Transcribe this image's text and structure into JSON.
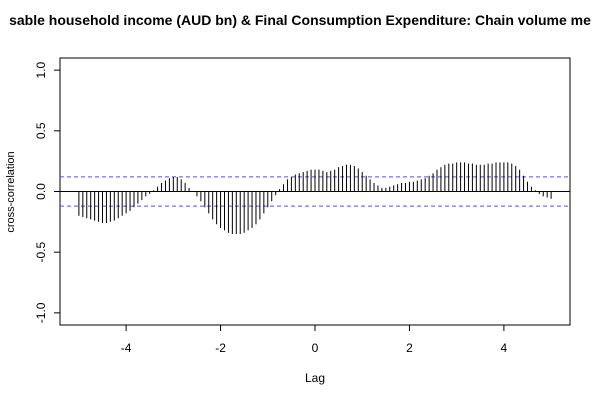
{
  "chart_data": {
    "type": "spike",
    "title": "sable household income (AUD bn) & Final Consumption Expenditure: Chain volume me",
    "xlabel": "Lag",
    "ylabel": "cross-correlation",
    "x": [
      -5,
      -4.9167,
      -4.8333,
      -4.75,
      -4.6667,
      -4.5833,
      -4.5,
      -4.4167,
      -4.3333,
      -4.25,
      -4.1667,
      -4.0833,
      -4,
      -3.9167,
      -3.8333,
      -3.75,
      -3.6667,
      -3.5833,
      -3.5,
      -3.4167,
      -3.3333,
      -3.25,
      -3.1667,
      -3.0833,
      -3,
      -2.9167,
      -2.8333,
      -2.75,
      -2.6667,
      -2.5833,
      -2.5,
      -2.4167,
      -2.3333,
      -2.25,
      -2.1667,
      -2.0833,
      -2,
      -1.9167,
      -1.8333,
      -1.75,
      -1.6667,
      -1.5833,
      -1.5,
      -1.4167,
      -1.3333,
      -1.25,
      -1.1667,
      -1.0833,
      -1,
      -0.9167,
      -0.8333,
      -0.75,
      -0.6667,
      -0.5833,
      -0.5,
      -0.4167,
      -0.3333,
      -0.25,
      -0.1667,
      -0.0833,
      0,
      0.0833,
      0.1667,
      0.25,
      0.3333,
      0.4167,
      0.5,
      0.5833,
      0.6667,
      0.75,
      0.8333,
      0.9167,
      1,
      1.0833,
      1.1667,
      1.25,
      1.3333,
      1.4167,
      1.5,
      1.5833,
      1.6667,
      1.75,
      1.8333,
      1.9167,
      2,
      2.0833,
      2.1667,
      2.25,
      2.3333,
      2.4167,
      2.5,
      2.5833,
      2.6667,
      2.75,
      2.8333,
      2.9167,
      3,
      3.0833,
      3.1667,
      3.25,
      3.3333,
      3.4167,
      3.5,
      3.5833,
      3.6667,
      3.75,
      3.8333,
      3.9167,
      4,
      4.0833,
      4.1667,
      4.25,
      4.3333,
      4.4167,
      4.5,
      4.5833,
      4.6667,
      4.75,
      4.8333,
      4.9167,
      5
    ],
    "values": [
      -0.2,
      -0.21,
      -0.22,
      -0.23,
      -0.24,
      -0.25,
      -0.26,
      -0.26,
      -0.25,
      -0.24,
      -0.22,
      -0.2,
      -0.18,
      -0.16,
      -0.13,
      -0.1,
      -0.07,
      -0.04,
      -0.02,
      0.01,
      0.04,
      0.07,
      0.09,
      0.11,
      0.12,
      0.12,
      0.1,
      0.07,
      0.03,
      0.0,
      -0.04,
      -0.08,
      -0.13,
      -0.18,
      -0.23,
      -0.27,
      -0.3,
      -0.32,
      -0.34,
      -0.35,
      -0.35,
      -0.35,
      -0.34,
      -0.32,
      -0.3,
      -0.27,
      -0.23,
      -0.18,
      -0.13,
      -0.08,
      -0.03,
      0.02,
      0.06,
      0.1,
      0.12,
      0.14,
      0.15,
      0.16,
      0.17,
      0.18,
      0.18,
      0.18,
      0.17,
      0.16,
      0.17,
      0.18,
      0.2,
      0.21,
      0.22,
      0.22,
      0.21,
      0.19,
      0.16,
      0.13,
      0.1,
      0.07,
      0.05,
      0.03,
      0.03,
      0.04,
      0.05,
      0.06,
      0.07,
      0.07,
      0.08,
      0.08,
      0.09,
      0.1,
      0.11,
      0.13,
      0.15,
      0.18,
      0.2,
      0.22,
      0.23,
      0.23,
      0.24,
      0.24,
      0.24,
      0.23,
      0.23,
      0.22,
      0.22,
      0.22,
      0.23,
      0.23,
      0.24,
      0.24,
      0.24,
      0.24,
      0.23,
      0.21,
      0.18,
      0.13,
      0.08,
      0.04,
      0.01,
      -0.02,
      -0.04,
      -0.05,
      -0.06
    ],
    "color": "#000000",
    "conf_lines": [
      0.12,
      -0.12
    ],
    "conf_color": "#4d4dff",
    "xlim": [
      -5.4,
      5.4
    ],
    "ylim": [
      -1.1,
      1.1
    ],
    "xticks": [
      -4,
      -2,
      0,
      2,
      4
    ],
    "yticks": [
      {
        "value": -1,
        "label": "-1.0"
      },
      {
        "value": -0.5,
        "label": "-0.5"
      },
      {
        "value": 0,
        "label": "0.0"
      },
      {
        "value": 0.5,
        "label": "0.5"
      },
      {
        "value": 1,
        "label": "1.0"
      }
    ]
  }
}
